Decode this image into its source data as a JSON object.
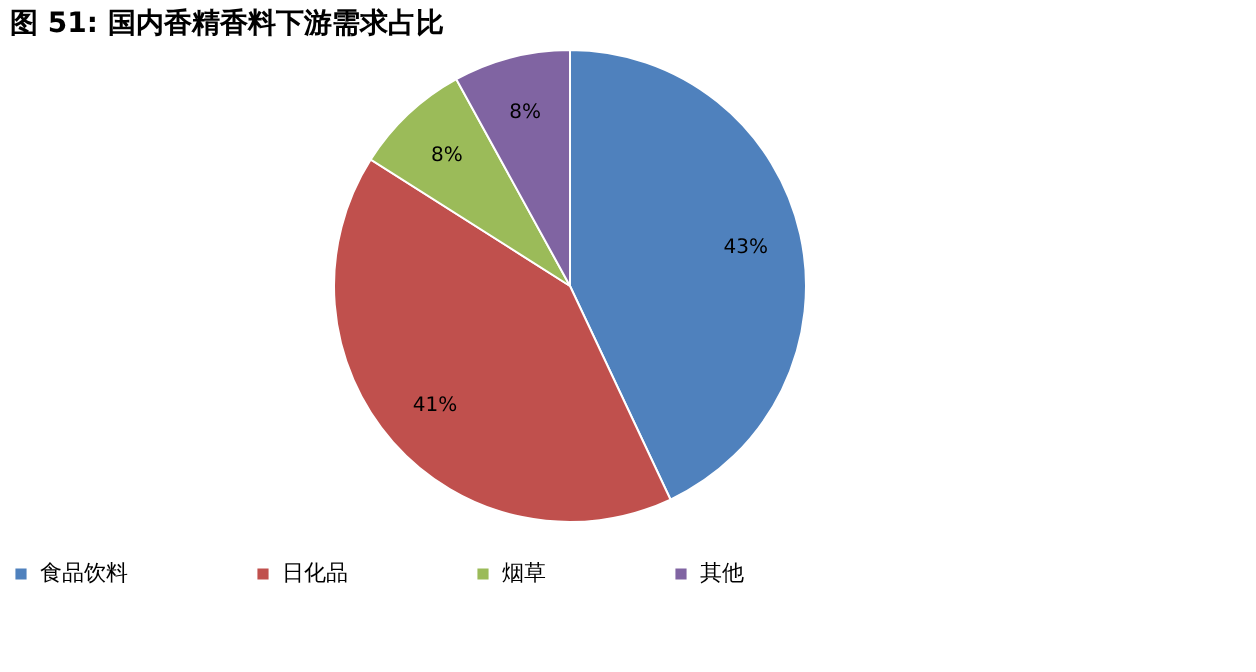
{
  "chart_data": {
    "type": "pie",
    "title": "图 51:  国内香精香料下游需求占比",
    "categories": [
      "食品饮料",
      "日化品",
      "烟草",
      "其他"
    ],
    "values": [
      43,
      41,
      8,
      8
    ],
    "colors": [
      "#4f81bd",
      "#c0504d",
      "#9bbb59",
      "#8064a2"
    ],
    "value_labels": [
      "43%",
      "41%",
      "8%",
      "8%"
    ],
    "legend": "bottom"
  }
}
